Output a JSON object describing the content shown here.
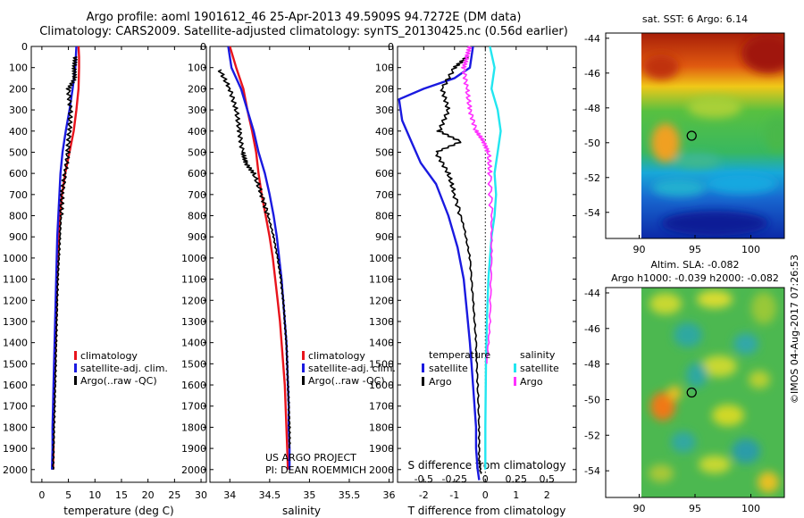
{
  "header": {
    "line1": "Argo profile: aoml 1901612_46 25-Apr-2013 49.5909S 94.7272E (DM data)",
    "line2": "Climatology: CARS2009. Satellite-adjusted climatology: synTS_20130425.nc (0.56d earlier)"
  },
  "copyright": "©IMOS 04-Aug-2017 07:26:53",
  "colors": {
    "climatology": "#e8141c",
    "satellite": "#1a1ae0",
    "argo": "#000000",
    "sat_salinity": "#22e6f0",
    "argo_salinity": "#ff30ff"
  },
  "chart_data": [
    {
      "type": "line",
      "id": "temperature",
      "xlabel": "temperature (deg C)",
      "ylabel": "",
      "xlim": [
        -2,
        31
      ],
      "ylim": [
        2060,
        0
      ],
      "xticks": [
        0,
        5,
        10,
        15,
        20,
        25,
        30
      ],
      "yticks": [
        0,
        100,
        200,
        300,
        400,
        500,
        600,
        700,
        800,
        900,
        1000,
        1100,
        1200,
        1300,
        1400,
        1500,
        1600,
        1700,
        1800,
        1900,
        2000
      ],
      "legend": [
        "climatology",
        "satellite-adj. clim.",
        "Argo(..raw -QC)"
      ],
      "series": [
        {
          "name": "climatology",
          "color": "#e8141c",
          "x": [
            6.9,
            7.0,
            7.0,
            6.9,
            6.5,
            6.0,
            5.2,
            4.4,
            3.8,
            3.4,
            3.2,
            3.0,
            2.9,
            2.8,
            2.7,
            2.6,
            2.5,
            2.4,
            2.3,
            2.2,
            2.2,
            2.1
          ],
          "y": [
            0,
            50,
            100,
            200,
            300,
            400,
            500,
            600,
            700,
            800,
            900,
            1000,
            1100,
            1200,
            1300,
            1400,
            1500,
            1600,
            1700,
            1800,
            1900,
            2000
          ]
        },
        {
          "name": "satellite-adj. clim.",
          "color": "#1a1ae0",
          "x": [
            6.5,
            6.3,
            5.8,
            5.2,
            4.5,
            3.9,
            3.5,
            3.3,
            3.1,
            2.9,
            2.8,
            2.7,
            2.6,
            2.5,
            2.4,
            2.3,
            2.2,
            2.1,
            2.0,
            2.0,
            1.9
          ],
          "y": [
            0,
            100,
            200,
            300,
            400,
            500,
            600,
            700,
            800,
            900,
            1000,
            1100,
            1200,
            1300,
            1400,
            1500,
            1600,
            1700,
            1800,
            1900,
            2000
          ]
        },
        {
          "name": "Argo(..raw -QC)",
          "color": "#000000",
          "x": [
            6.3,
            6.1,
            6.2,
            5.0,
            5.4,
            5.2,
            4.9,
            4.4,
            3.8,
            3.6,
            3.4,
            3.2,
            3.0,
            2.9,
            2.8,
            2.7,
            2.6,
            2.5,
            2.4,
            2.3,
            2.2,
            2.1
          ],
          "y": [
            50,
            100,
            150,
            200,
            300,
            400,
            500,
            600,
            700,
            800,
            900,
            1000,
            1100,
            1200,
            1300,
            1400,
            1500,
            1600,
            1700,
            1800,
            1900,
            2000
          ]
        }
      ]
    },
    {
      "type": "line",
      "id": "salinity",
      "xlabel": "salinity",
      "xlim": [
        33.75,
        36.05
      ],
      "ylim": [
        2060,
        0
      ],
      "xticks": [
        34,
        34.5,
        35,
        35.5,
        36
      ],
      "legend": [
        "climatology",
        "satellite-adj. clim.",
        "Argo(..raw -QC)"
      ],
      "annotation": [
        "US ARGO PROJECT",
        "PI: DEAN ROEMMICH"
      ],
      "series": [
        {
          "name": "climatology",
          "color": "#e8141c",
          "x": [
            34.0,
            34.08,
            34.17,
            34.22,
            34.28,
            34.33,
            34.36,
            34.4,
            34.45,
            34.5,
            34.54,
            34.57,
            34.6,
            34.63,
            34.65,
            34.67,
            34.69,
            34.7,
            34.71,
            34.72,
            34.73
          ],
          "y": [
            0,
            100,
            200,
            300,
            400,
            500,
            600,
            700,
            800,
            900,
            1000,
            1100,
            1200,
            1300,
            1400,
            1500,
            1600,
            1700,
            1800,
            1900,
            2000
          ]
        },
        {
          "name": "satellite-adj. clim.",
          "color": "#1a1ae0",
          "x": [
            33.98,
            34.02,
            34.14,
            34.22,
            34.3,
            34.36,
            34.44,
            34.5,
            34.55,
            34.59,
            34.62,
            34.65,
            34.67,
            34.69,
            34.71,
            34.72,
            34.73,
            34.74,
            34.74,
            34.75,
            34.75
          ],
          "y": [
            0,
            100,
            200,
            300,
            400,
            500,
            600,
            700,
            800,
            900,
            1000,
            1100,
            1200,
            1300,
            1400,
            1500,
            1600,
            1700,
            1800,
            1900,
            2000
          ]
        },
        {
          "name": "Argo(..raw -QC)",
          "color": "#000000",
          "x": [
            33.87,
            34.0,
            34.08,
            34.12,
            34.16,
            34.2,
            34.3,
            34.4,
            34.48,
            34.55,
            34.6,
            34.64,
            34.67,
            34.69,
            34.71,
            34.72,
            34.73,
            34.74,
            34.75,
            34.75
          ],
          "y": [
            110,
            200,
            300,
            400,
            500,
            550,
            600,
            700,
            800,
            900,
            1000,
            1100,
            1200,
            1300,
            1400,
            1500,
            1600,
            1700,
            1800,
            1900
          ]
        }
      ]
    },
    {
      "type": "line",
      "id": "difference",
      "xlabel": "T difference from climatology",
      "xlabel2": "S difference from climatology",
      "xlim": [
        -2.85,
        2.95
      ],
      "ylim": [
        2060,
        0
      ],
      "xticks": [
        -2,
        -1,
        0,
        1,
        2
      ],
      "s_xticks": [
        "-0.5",
        "-0.25",
        "0",
        "0.25",
        "0.5"
      ],
      "legend_temperature": {
        "title": "temperature",
        "items": [
          "satellite",
          "Argo"
        ]
      },
      "legend_salinity": {
        "title": "salinity",
        "items": [
          "satellite",
          "Argo"
        ]
      },
      "series": [
        {
          "name": "temperature satellite",
          "color": "#1a1ae0",
          "x": [
            -0.4,
            -0.5,
            -1.0,
            -2.0,
            -2.8,
            -2.7,
            -2.4,
            -2.1,
            -1.6,
            -1.2,
            -0.9,
            -0.7,
            -0.6,
            -0.5,
            -0.45,
            -0.4,
            -0.35,
            -0.3,
            -0.3,
            -0.25,
            -0.2
          ],
          "y": [
            0,
            100,
            150,
            200,
            250,
            350,
            450,
            550,
            650,
            800,
            950,
            1100,
            1250,
            1400,
            1500,
            1600,
            1700,
            1800,
            1900,
            2000,
            2050
          ]
        },
        {
          "name": "temperature Argo",
          "color": "#000000",
          "x": [
            -0.6,
            -1.0,
            -1.4,
            -1.2,
            -1.5,
            -0.8,
            -1.6,
            -1.2,
            -1.0,
            -0.7,
            -0.5,
            -0.4,
            -0.3,
            -0.25,
            -0.2,
            -0.2,
            -0.15
          ],
          "y": [
            50,
            100,
            200,
            300,
            400,
            450,
            500,
            600,
            700,
            850,
            1000,
            1200,
            1400,
            1600,
            1800,
            1950,
            2020
          ]
        },
        {
          "name": "salinity satellite",
          "color": "#22e6f0",
          "x": [
            0.15,
            0.3,
            0.2,
            0.4,
            0.5,
            0.4,
            0.3,
            0.35,
            0.3,
            0.2,
            0.1,
            0.05,
            0.02,
            0.0,
            0.0
          ],
          "y": [
            0,
            100,
            200,
            300,
            400,
            500,
            600,
            700,
            800,
            900,
            1100,
            1300,
            1500,
            1800,
            2000
          ]
        },
        {
          "name": "salinity Argo",
          "color": "#ff30ff",
          "x": [
            -0.5,
            -0.6,
            -0.7,
            -0.6,
            -0.5,
            -0.3,
            -0.05,
            0.1,
            0.15,
            0.2,
            0.2,
            0.15,
            0.05
          ],
          "y": [
            0,
            50,
            100,
            200,
            300,
            400,
            450,
            500,
            600,
            800,
            1000,
            1300,
            1500
          ]
        }
      ]
    },
    {
      "type": "heatmap",
      "id": "map-sst",
      "title": "sat. SST: 6 Argo: 6.14",
      "xlim": [
        87,
        103
      ],
      "ylim": [
        -55.5,
        -43.7
      ],
      "xticks": [
        90,
        95,
        100
      ],
      "yticks": [
        -44,
        -46,
        -48,
        -50,
        -52,
        -54
      ],
      "marker": [
        94.7,
        -49.6
      ]
    },
    {
      "type": "heatmap",
      "id": "map-sla",
      "title": "Altim. SLA: -0.082",
      "subtitle": "Argo h1000: -0.039 h2000: -0.082",
      "xlim": [
        87,
        103
      ],
      "ylim": [
        -55.5,
        -43.7
      ],
      "xticks": [
        90,
        95,
        100
      ],
      "yticks": [
        -44,
        -46,
        -48,
        -50,
        -52,
        -54
      ],
      "marker": [
        94.7,
        -49.6
      ]
    }
  ]
}
